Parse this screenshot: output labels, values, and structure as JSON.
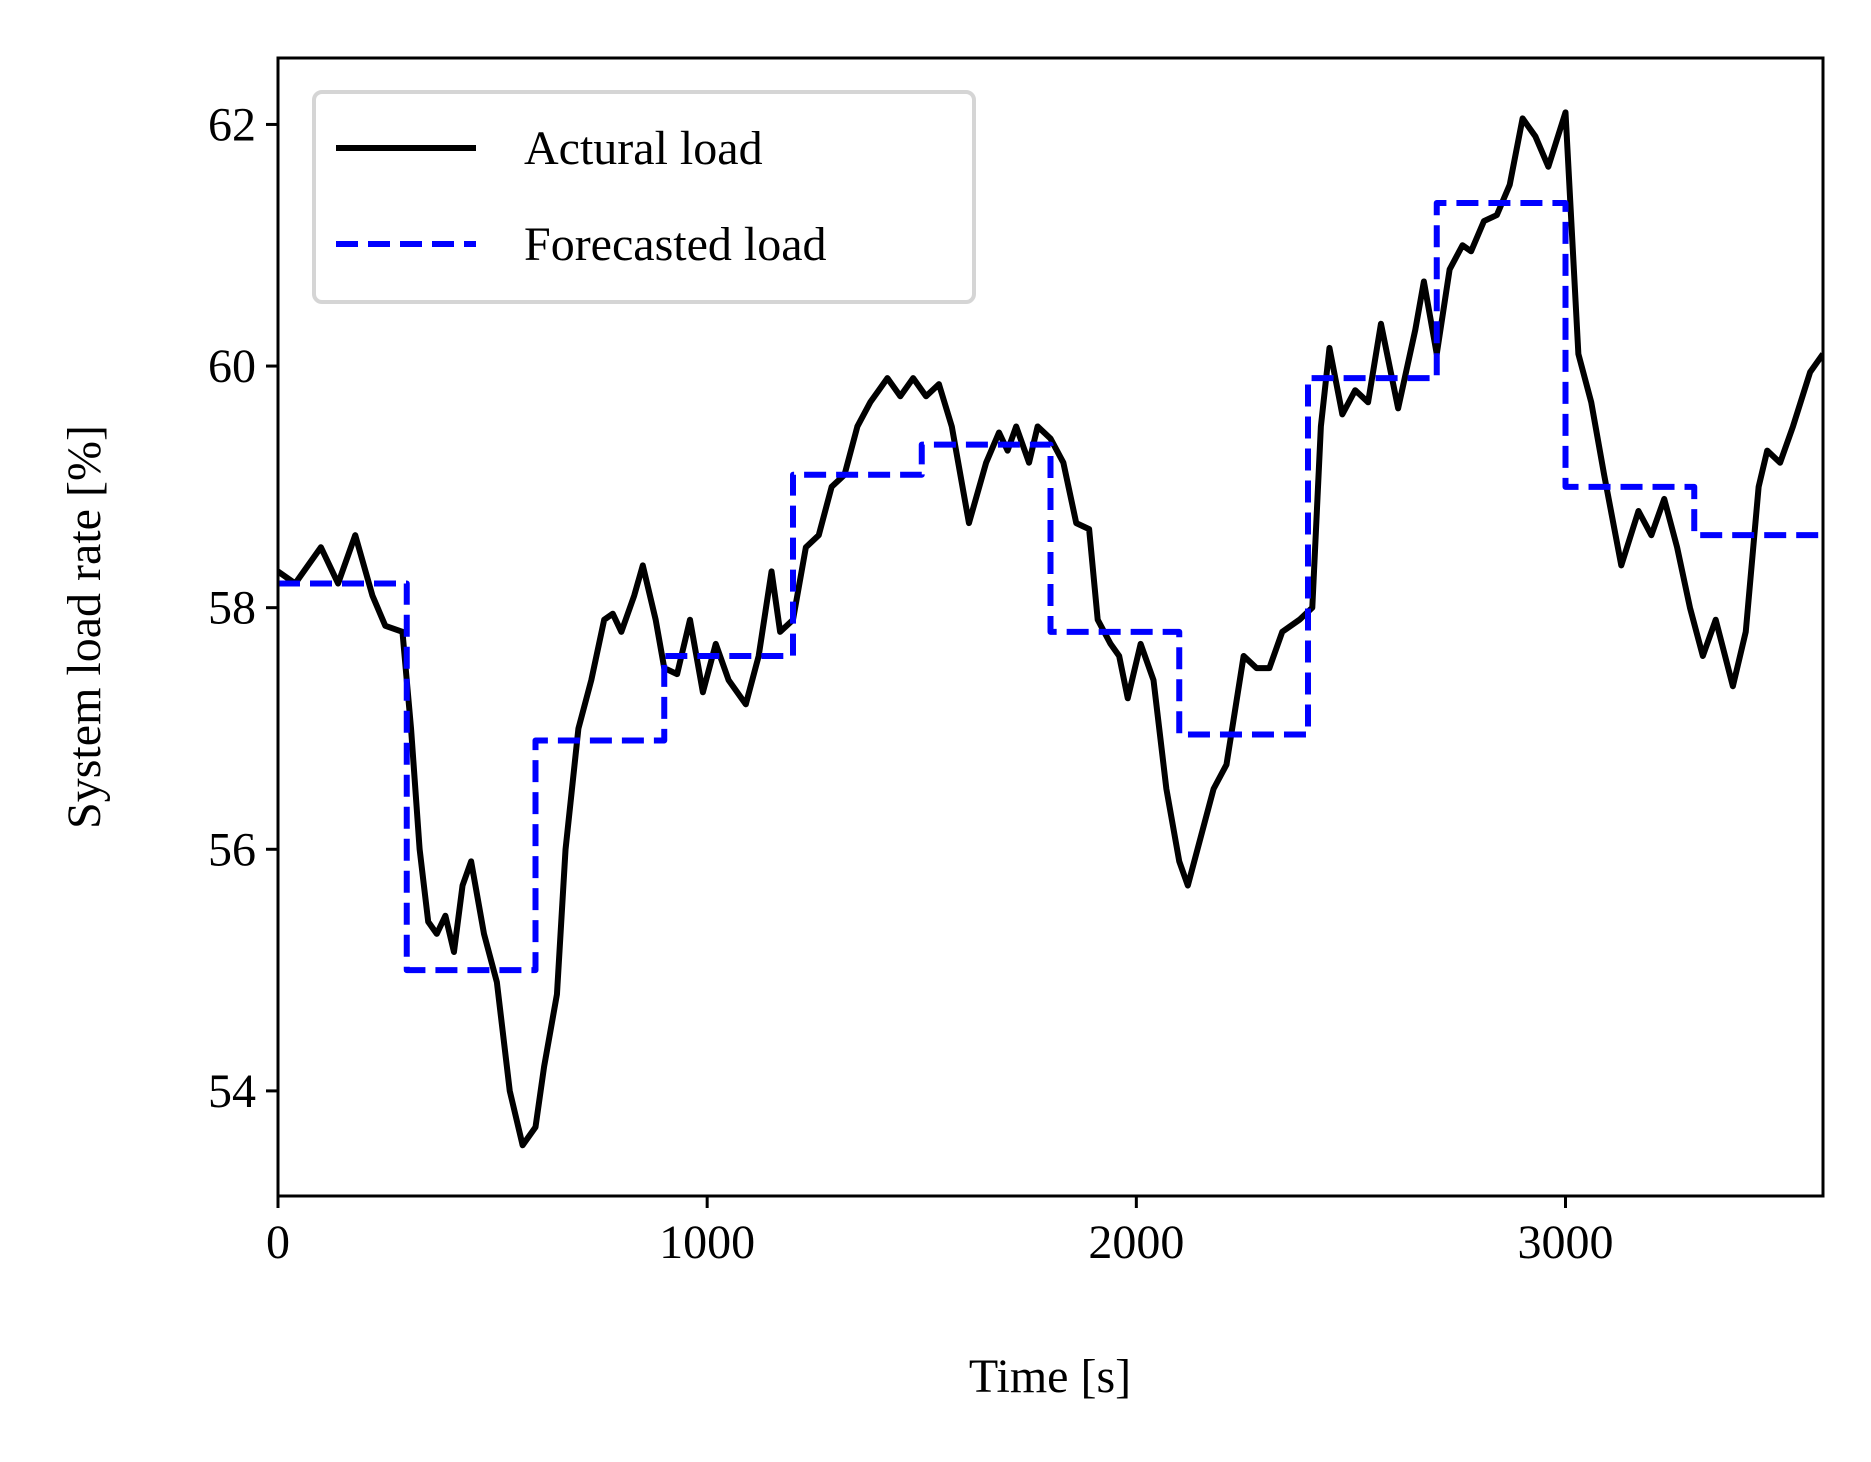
{
  "chart_data": {
    "type": "line",
    "xlabel": "Time [s]",
    "ylabel": "System load rate [%]",
    "xlim": [
      0,
      3600
    ],
    "xticks": [
      0,
      1000,
      2000,
      3000
    ],
    "ylim": [
      53.13,
      62.55
    ],
    "yticks": [
      54,
      56,
      58,
      60,
      62
    ],
    "legend": "upper left",
    "series": [
      {
        "name": "Actural load",
        "color": "#000000",
        "style": "solid",
        "x": [
          0,
          40,
          100,
          140,
          180,
          220,
          250,
          290,
          310,
          330,
          350,
          370,
          390,
          410,
          430,
          450,
          480,
          510,
          540,
          570,
          600,
          620,
          650,
          670,
          700,
          730,
          760,
          780,
          800,
          830,
          850,
          880,
          900,
          930,
          960,
          990,
          1020,
          1050,
          1090,
          1120,
          1150,
          1170,
          1200,
          1230,
          1260,
          1290,
          1320,
          1350,
          1380,
          1400,
          1420,
          1450,
          1480,
          1510,
          1540,
          1570,
          1610,
          1650,
          1680,
          1700,
          1720,
          1750,
          1770,
          1800,
          1830,
          1860,
          1890,
          1910,
          1940,
          1960,
          1980,
          2010,
          2040,
          2070,
          2100,
          2120,
          2150,
          2180,
          2210,
          2250,
          2280,
          2310,
          2340,
          2380,
          2410,
          2430,
          2450,
          2480,
          2510,
          2540,
          2570,
          2610,
          2650,
          2670,
          2700,
          2730,
          2760,
          2780,
          2810,
          2840,
          2870,
          2900,
          2930,
          2960,
          3000,
          3030,
          3060,
          3090,
          3130,
          3170,
          3200,
          3230,
          3260,
          3290,
          3320,
          3350,
          3390,
          3420,
          3450,
          3470,
          3500,
          3530,
          3570,
          3600
        ],
        "values": [
          58.3,
          58.2,
          58.5,
          58.2,
          58.6,
          58.1,
          57.85,
          57.8,
          57.0,
          56.0,
          55.4,
          55.3,
          55.45,
          55.15,
          55.7,
          55.9,
          55.3,
          54.9,
          54.0,
          53.55,
          53.7,
          54.2,
          54.8,
          56.0,
          57.0,
          57.4,
          57.9,
          57.95,
          57.8,
          58.1,
          58.35,
          57.9,
          57.5,
          57.45,
          57.9,
          57.3,
          57.7,
          57.4,
          57.2,
          57.6,
          58.3,
          57.8,
          57.9,
          58.5,
          58.6,
          59.0,
          59.1,
          59.5,
          59.7,
          59.8,
          59.9,
          59.75,
          59.9,
          59.75,
          59.85,
          59.5,
          58.7,
          59.2,
          59.45,
          59.3,
          59.5,
          59.2,
          59.5,
          59.4,
          59.2,
          58.7,
          58.65,
          57.9,
          57.7,
          57.6,
          57.25,
          57.7,
          57.4,
          56.5,
          55.9,
          55.7,
          56.1,
          56.5,
          56.7,
          57.6,
          57.5,
          57.5,
          57.8,
          57.9,
          58.0,
          59.5,
          60.15,
          59.6,
          59.8,
          59.7,
          60.35,
          59.65,
          60.3,
          60.7,
          60.1,
          60.8,
          61.0,
          60.95,
          61.2,
          61.25,
          61.5,
          62.05,
          61.9,
          61.65,
          62.1,
          60.1,
          59.7,
          59.1,
          58.35,
          58.8,
          58.6,
          58.9,
          58.5,
          58.0,
          57.6,
          57.9,
          57.35,
          57.8,
          59.0,
          59.3,
          59.2,
          59.5,
          59.95,
          60.1
        ]
      },
      {
        "name": "Forecasted load",
        "color": "#0000ff",
        "style": "dashed",
        "x": [
          0,
          300,
          300,
          600,
          600,
          900,
          900,
          1200,
          1200,
          1500,
          1500,
          1800,
          1800,
          2100,
          2100,
          2400,
          2400,
          2700,
          2700,
          3000,
          3000,
          3300,
          3300,
          3600
        ],
        "values": [
          58.2,
          58.2,
          55.0,
          55.0,
          56.9,
          56.9,
          57.6,
          57.6,
          59.1,
          59.1,
          59.35,
          59.35,
          57.8,
          57.8,
          56.95,
          56.95,
          59.9,
          59.9,
          61.35,
          61.35,
          59.0,
          59.0,
          58.6,
          58.6
        ]
      }
    ]
  }
}
